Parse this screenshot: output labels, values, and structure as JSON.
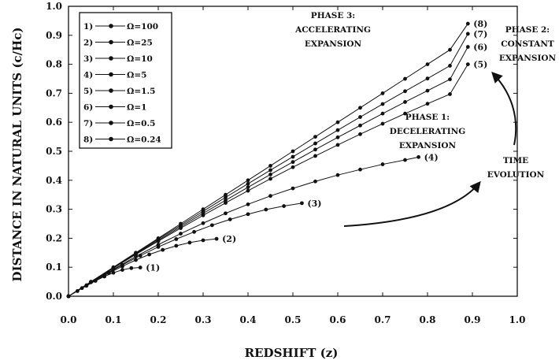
{
  "chart_data": {
    "type": "scatter",
    "title": "",
    "xlabel": "REDSHIFT (z)",
    "ylabel": "DISTANCE IN NATURAL UNITS (c/Hc)",
    "xlim": [
      0.0,
      1.0
    ],
    "ylim": [
      0.0,
      1.0
    ],
    "x_ticks": [
      "0.0",
      "0.1",
      "0.2",
      "0.3",
      "0.4",
      "0.5",
      "0.6",
      "0.7",
      "0.8",
      "0.9",
      "1.0"
    ],
    "y_ticks": [
      "0.0",
      "0.1",
      "0.2",
      "0.3",
      "0.4",
      "0.5",
      "0.6",
      "0.7",
      "0.8",
      "0.9",
      "1.0"
    ],
    "legend_position": "top-left",
    "grid": false,
    "series": [
      {
        "name": "Ω=100",
        "tag": "(1)",
        "x": [
          0.0,
          0.02,
          0.04,
          0.06,
          0.08,
          0.1,
          0.12,
          0.14,
          0.16
        ],
        "y": [
          0.0,
          0.018,
          0.036,
          0.053,
          0.068,
          0.081,
          0.091,
          0.097,
          0.099
        ]
      },
      {
        "name": "Ω=25",
        "tag": "(2)",
        "x": [
          0.0,
          0.03,
          0.06,
          0.09,
          0.12,
          0.15,
          0.18,
          0.21,
          0.24,
          0.27,
          0.3,
          0.33
        ],
        "y": [
          0.0,
          0.028,
          0.054,
          0.08,
          0.103,
          0.125,
          0.144,
          0.16,
          0.174,
          0.185,
          0.193,
          0.198
        ]
      },
      {
        "name": "Ω=10",
        "tag": "(3)",
        "x": [
          0.0,
          0.04,
          0.08,
          0.12,
          0.16,
          0.2,
          0.24,
          0.28,
          0.32,
          0.36,
          0.4,
          0.44,
          0.48,
          0.52
        ],
        "y": [
          0.0,
          0.038,
          0.074,
          0.108,
          0.14,
          0.17,
          0.197,
          0.222,
          0.245,
          0.265,
          0.283,
          0.299,
          0.311,
          0.321
        ]
      },
      {
        "name": "Ω=5",
        "tag": "(4)",
        "x": [
          0.0,
          0.05,
          0.1,
          0.15,
          0.2,
          0.25,
          0.3,
          0.35,
          0.4,
          0.45,
          0.5,
          0.55,
          0.6,
          0.65,
          0.7,
          0.75,
          0.78
        ],
        "y": [
          0.0,
          0.048,
          0.093,
          0.137,
          0.178,
          0.216,
          0.252,
          0.286,
          0.317,
          0.346,
          0.372,
          0.396,
          0.418,
          0.437,
          0.455,
          0.47,
          0.48
        ]
      },
      {
        "name": "Ω=1.5",
        "tag": "(5)",
        "x": [
          0.0,
          0.05,
          0.1,
          0.15,
          0.2,
          0.25,
          0.3,
          0.35,
          0.4,
          0.45,
          0.5,
          0.55,
          0.6,
          0.65,
          0.7,
          0.75,
          0.8,
          0.85,
          0.89
        ],
        "y": [
          0.0,
          0.049,
          0.097,
          0.144,
          0.19,
          0.235,
          0.279,
          0.322,
          0.364,
          0.405,
          0.445,
          0.484,
          0.522,
          0.559,
          0.595,
          0.63,
          0.664,
          0.697,
          0.8
        ]
      },
      {
        "name": "Ω=1",
        "tag": "(6)",
        "x": [
          0.0,
          0.05,
          0.1,
          0.15,
          0.2,
          0.25,
          0.3,
          0.35,
          0.4,
          0.45,
          0.5,
          0.55,
          0.6,
          0.65,
          0.7,
          0.75,
          0.8,
          0.85,
          0.89
        ],
        "y": [
          0.0,
          0.049,
          0.098,
          0.146,
          0.193,
          0.24,
          0.286,
          0.331,
          0.376,
          0.42,
          0.463,
          0.506,
          0.548,
          0.589,
          0.63,
          0.67,
          0.709,
          0.748,
          0.86
        ]
      },
      {
        "name": "Ω=0.5",
        "tag": "(7)",
        "x": [
          0.0,
          0.05,
          0.1,
          0.15,
          0.2,
          0.25,
          0.3,
          0.35,
          0.4,
          0.45,
          0.5,
          0.55,
          0.6,
          0.65,
          0.7,
          0.75,
          0.8,
          0.85,
          0.89
        ],
        "y": [
          0.0,
          0.05,
          0.099,
          0.148,
          0.197,
          0.245,
          0.293,
          0.341,
          0.388,
          0.435,
          0.481,
          0.527,
          0.573,
          0.618,
          0.663,
          0.707,
          0.751,
          0.795,
          0.905
        ]
      },
      {
        "name": "Ω=0.24",
        "tag": "(8)",
        "x": [
          0.0,
          0.05,
          0.1,
          0.15,
          0.2,
          0.25,
          0.3,
          0.35,
          0.4,
          0.45,
          0.5,
          0.55,
          0.6,
          0.65,
          0.7,
          0.75,
          0.8,
          0.85,
          0.89
        ],
        "y": [
          0.0,
          0.05,
          0.1,
          0.15,
          0.2,
          0.25,
          0.3,
          0.35,
          0.4,
          0.45,
          0.5,
          0.55,
          0.6,
          0.65,
          0.7,
          0.75,
          0.8,
          0.85,
          0.94
        ]
      }
    ],
    "annotations": {
      "phase1": [
        "PHASE 1:",
        "DECELERATING",
        "EXPANSION"
      ],
      "phase2": [
        "PHASE 2:",
        "CONSTANT",
        "EXPANSION"
      ],
      "phase3": [
        "PHASE 3:",
        "ACCELERATING",
        "EXPANSION"
      ],
      "time_evolution": [
        "TIME",
        "EVOLUTION"
      ]
    }
  }
}
